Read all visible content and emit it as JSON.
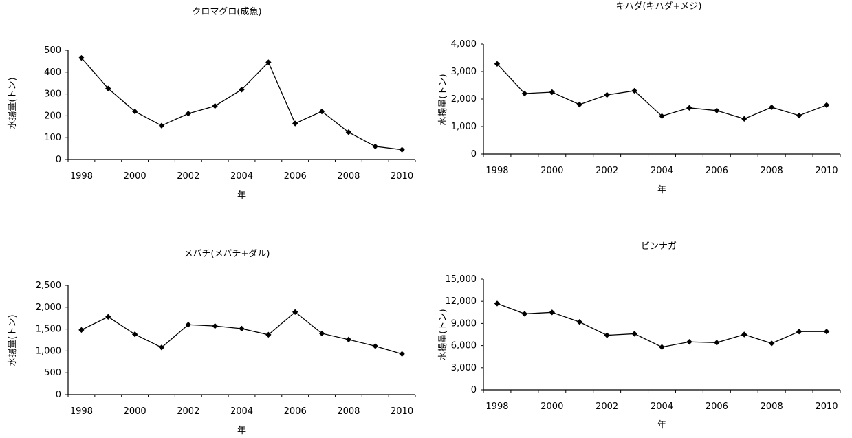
{
  "chart_data": [
    {
      "type": "line",
      "title": "クロマグロ(成魚)",
      "xlabel": "年",
      "ylabel": "水揚量(トン)",
      "x": [
        1998,
        1999,
        2000,
        2001,
        2002,
        2003,
        2004,
        2005,
        2006,
        2007,
        2008,
        2009,
        2010
      ],
      "x_tick_labels": [
        "1998",
        "2000",
        "2002",
        "2004",
        "2006",
        "2008",
        "2010"
      ],
      "y_tick_labels": [
        "0",
        "100",
        "200",
        "300",
        "400",
        "500"
      ],
      "ylim": [
        0,
        500
      ],
      "series": [
        {
          "values": [
            465,
            325,
            220,
            155,
            210,
            245,
            320,
            445,
            165,
            220,
            125,
            60,
            45
          ]
        }
      ]
    },
    {
      "type": "line",
      "title": "キハダ(キハダ+メジ)",
      "xlabel": "年",
      "ylabel": "水揚量(トン)",
      "x": [
        1998,
        1999,
        2000,
        2001,
        2002,
        2003,
        2004,
        2005,
        2006,
        2007,
        2008,
        2009,
        2010
      ],
      "x_tick_labels": [
        "1998",
        "2000",
        "2002",
        "2004",
        "2006",
        "2008",
        "2010"
      ],
      "y_tick_labels": [
        "0",
        "1,000",
        "2,000",
        "3,000",
        "4,000"
      ],
      "ylim": [
        0,
        4000
      ],
      "series": [
        {
          "values": [
            3280,
            2200,
            2250,
            1800,
            2150,
            2300,
            1380,
            1680,
            1580,
            1280,
            1700,
            1400,
            1780
          ]
        }
      ]
    },
    {
      "type": "line",
      "title": "メバチ(メバチ+ダル)",
      "xlabel": "年",
      "ylabel": "水揚量(トン)",
      "x": [
        1998,
        1999,
        2000,
        2001,
        2002,
        2003,
        2004,
        2005,
        2006,
        2007,
        2008,
        2009,
        2010
      ],
      "x_tick_labels": [
        "1998",
        "2000",
        "2002",
        "2004",
        "2006",
        "2008",
        "2010"
      ],
      "y_tick_labels": [
        "0",
        "500",
        "1,000",
        "1,500",
        "2,000",
        "2,500"
      ],
      "ylim": [
        0,
        2500
      ],
      "series": [
        {
          "values": [
            1480,
            1780,
            1380,
            1080,
            1600,
            1570,
            1510,
            1370,
            1890,
            1400,
            1260,
            1110,
            930
          ]
        }
      ]
    },
    {
      "type": "line",
      "title": "ビンナガ",
      "xlabel": "年",
      "ylabel": "水揚量(トン)",
      "x": [
        1998,
        1999,
        2000,
        2001,
        2002,
        2003,
        2004,
        2005,
        2006,
        2007,
        2008,
        2009,
        2010
      ],
      "x_tick_labels": [
        "1998",
        "2000",
        "2002",
        "2004",
        "2006",
        "2008",
        "2010"
      ],
      "y_tick_labels": [
        "0",
        "3,000",
        "6,000",
        "9,000",
        "12,000",
        "15,000"
      ],
      "ylim": [
        0,
        15000
      ],
      "series": [
        {
          "values": [
            11700,
            10300,
            10500,
            9200,
            7400,
            7600,
            5800,
            6500,
            6400,
            7500,
            6300,
            7900,
            7900
          ]
        }
      ]
    }
  ]
}
